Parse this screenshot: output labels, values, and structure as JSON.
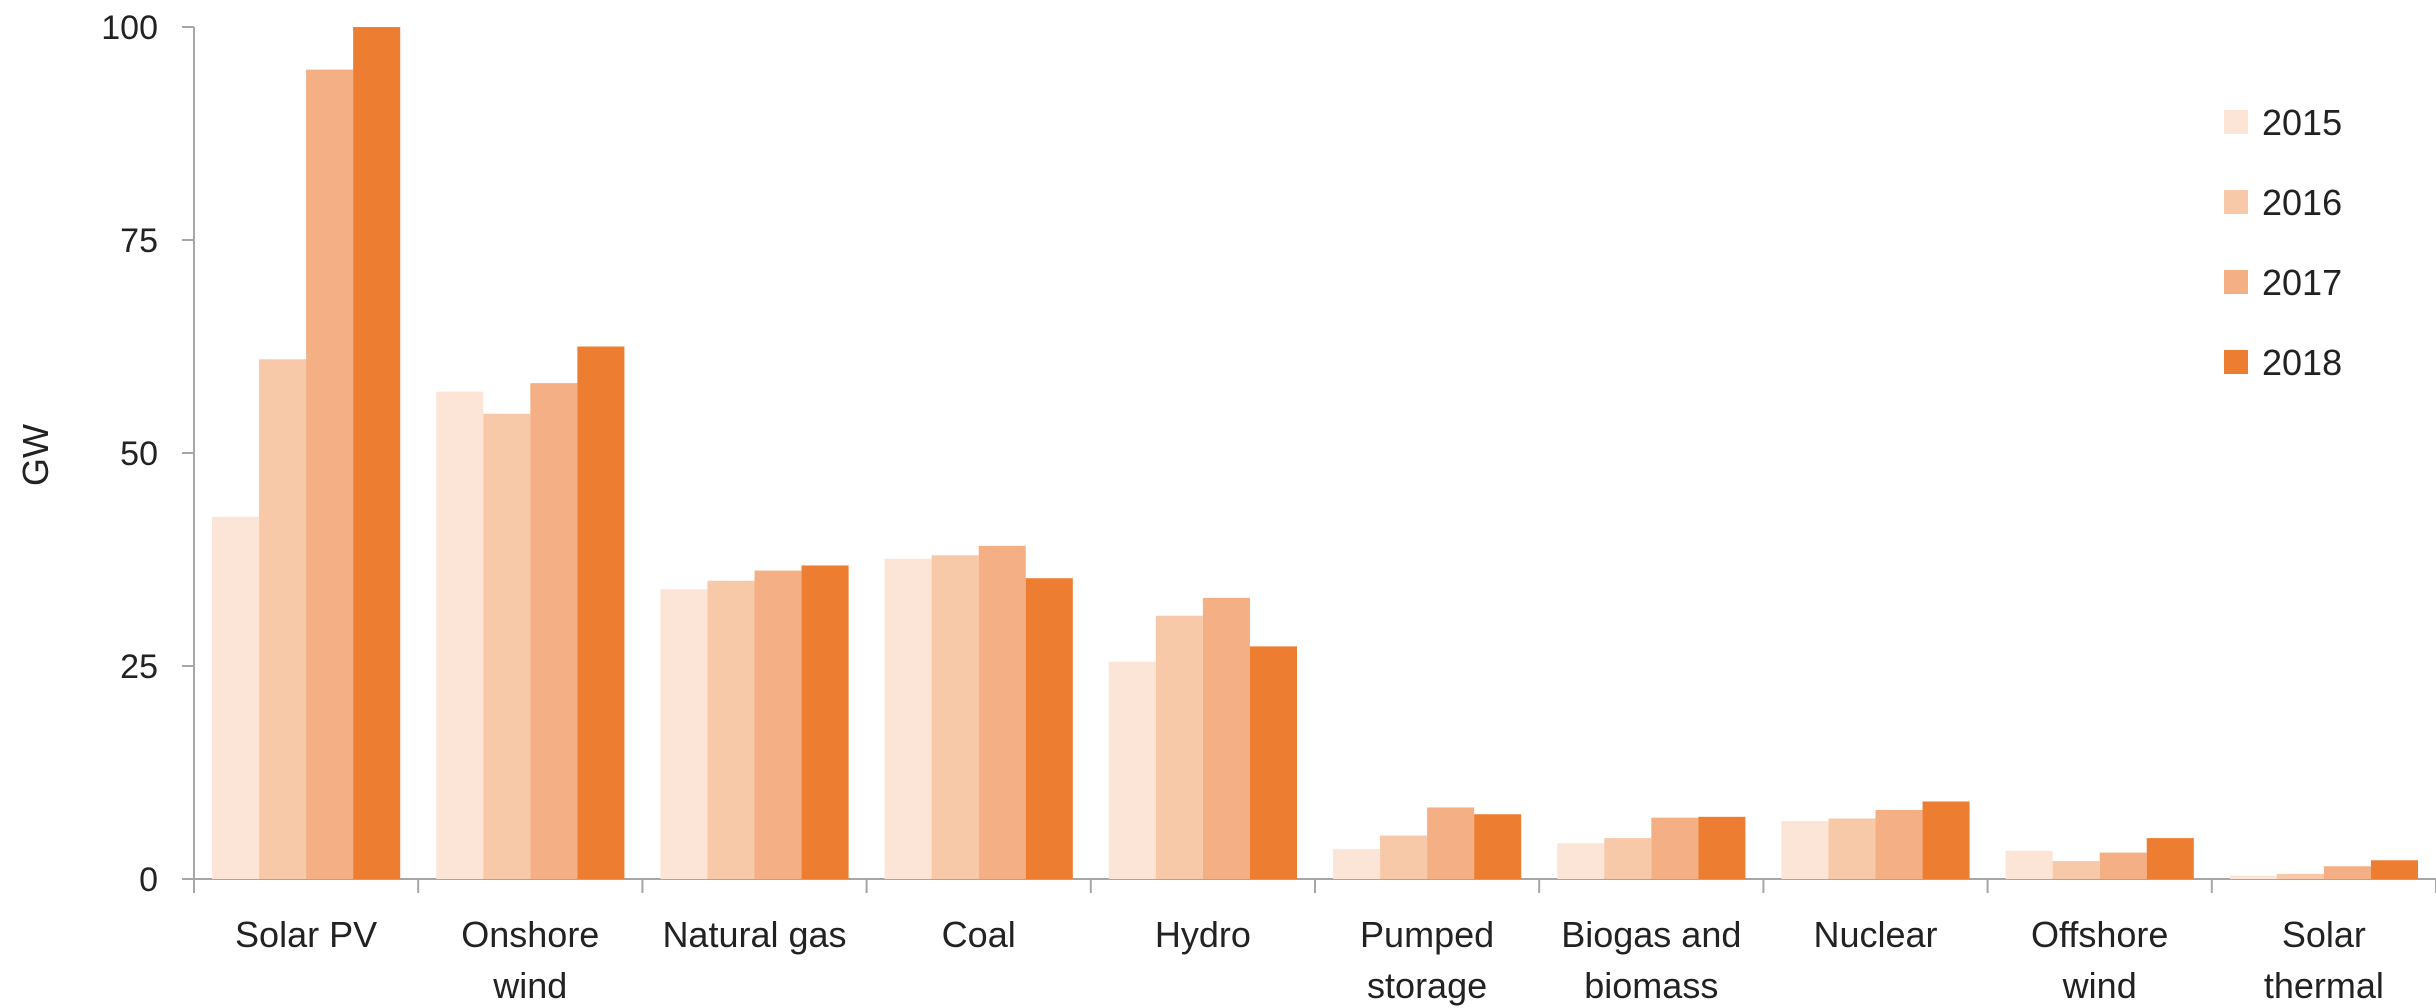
{
  "chart_data": {
    "type": "bar",
    "title": "",
    "xlabel": "",
    "ylabel": "GW",
    "ylim": [
      0,
      100
    ],
    "yticks": [
      0,
      25,
      50,
      75,
      100
    ],
    "grid": false,
    "legend_position": "top-right",
    "categories": [
      [
        "Solar PV"
      ],
      [
        "Onshore",
        "wind"
      ],
      [
        "Natural gas"
      ],
      [
        "Coal"
      ],
      [
        "Hydro"
      ],
      [
        "Pumped",
        "storage"
      ],
      [
        "Biogas and",
        "biomass"
      ],
      [
        "Nuclear"
      ],
      [
        "Offshore",
        "wind"
      ],
      [
        "Solar",
        "thermal"
      ]
    ],
    "series": [
      {
        "name": "2015",
        "color": "#FCE4D6",
        "values": [
          42.5,
          57.2,
          34.0,
          37.6,
          25.5,
          3.5,
          4.2,
          6.8,
          3.3,
          0.4
        ]
      },
      {
        "name": "2016",
        "color": "#F8C9A8",
        "values": [
          61.0,
          54.6,
          35.0,
          38.0,
          30.9,
          5.1,
          4.8,
          7.1,
          2.1,
          0.6
        ]
      },
      {
        "name": "2017",
        "color": "#F4B084",
        "values": [
          95.0,
          58.2,
          36.2,
          39.1,
          33.0,
          8.4,
          7.2,
          8.1,
          3.1,
          1.5
        ]
      },
      {
        "name": "2018",
        "color": "#ED7D31",
        "values": [
          100.0,
          62.5,
          36.8,
          35.3,
          27.3,
          7.6,
          7.3,
          9.1,
          4.8,
          2.2
        ]
      }
    ]
  }
}
